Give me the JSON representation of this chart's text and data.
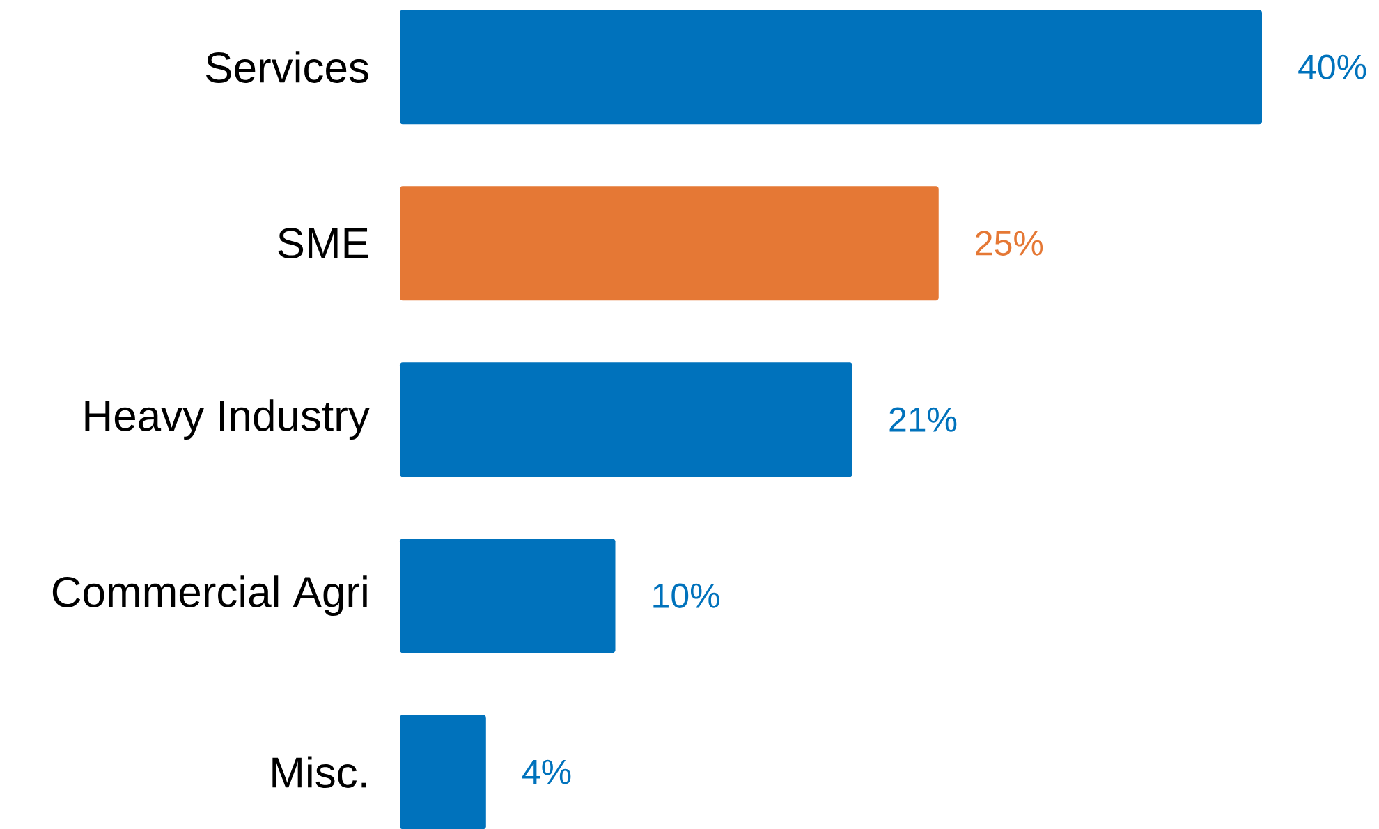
{
  "chart_data": {
    "type": "bar",
    "orientation": "horizontal",
    "categories": [
      "Services",
      "SME",
      "Heavy Industry",
      "Commercial Agri",
      "Misc."
    ],
    "values": [
      40,
      25,
      21,
      10,
      4
    ],
    "colors": [
      "#0072bc",
      "#e57835",
      "#0072bc",
      "#0072bc",
      "#0072bc"
    ],
    "value_labels": [
      "40%",
      "25%",
      "21%",
      "10%",
      "4%"
    ]
  }
}
